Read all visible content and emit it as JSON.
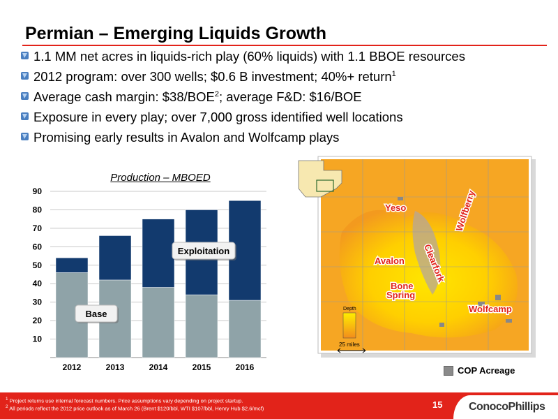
{
  "slide": {
    "title": "Permian – Emerging Liquids Growth",
    "bullets": [
      {
        "text": "1.1 MM net acres in liquids-rich play (60% liquids) with 1.1 BBOE resources"
      },
      {
        "text": "2012 program: over 300 wells; $0.6 B investment; 40%+ return",
        "sup": "1"
      },
      {
        "text": "Average cash margin: $38/BOE",
        "sup": "2",
        "text_after": "; average F&D: $16/BOE"
      },
      {
        "text": "Exposure in every play; over 7,000 gross identified well locations"
      },
      {
        "text": "Promising early results in Avalon and Wolfcamp plays"
      }
    ]
  },
  "chart_data": {
    "type": "bar",
    "stacked": true,
    "title": "Production – MBOED",
    "categories": [
      "2012",
      "2013",
      "2014",
      "2015",
      "2016"
    ],
    "series": [
      {
        "name": "Base",
        "values": [
          46,
          42,
          38,
          34,
          31
        ],
        "color": "#8fa3a8"
      },
      {
        "name": "Exploitation",
        "values": [
          8,
          24,
          37,
          46,
          54
        ],
        "color": "#123a6e"
      }
    ],
    "ylim": [
      0,
      90
    ],
    "yticks": [
      10,
      20,
      30,
      40,
      50,
      60,
      70,
      80,
      90
    ],
    "grid": true,
    "xlabel": "",
    "ylabel": ""
  },
  "map": {
    "play_labels": [
      "Yeso",
      "Avalon",
      "Clearfork",
      "Wolfberry",
      "Bone",
      "Spring",
      "Wolfcamp"
    ],
    "depth_label": "Depth",
    "scale_label": "25 miles",
    "legend_label": "COP Acreage"
  },
  "footer": {
    "footnote1_sup": "1",
    "footnote1": " Project returns use internal forecast numbers. Price assumptions vary depending on project startup.",
    "footnote2_sup": "2",
    "footnote2": " All periods reflect the 2012 price outlook as of March 26 (Brent $120/bbl, WTI $107/bbl, Henry Hub $2.6/mcf)",
    "page_number": "15",
    "logo_text": "ConocoPhillips"
  },
  "colors": {
    "accent": "#e2231a",
    "base": "#8fa3a8",
    "exploitation": "#123a6e",
    "map_orange": "#f5a623",
    "map_yellow": "#ffea00"
  }
}
